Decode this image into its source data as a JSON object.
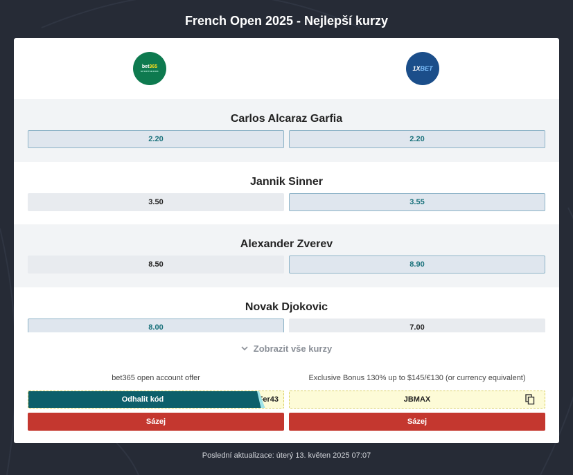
{
  "page": {
    "title": "French Open 2025 - Nejlepší kurzy"
  },
  "bookmakers": [
    {
      "name": "bet365",
      "logo_text_main": "bet",
      "logo_text_accent": "365",
      "logo_sub": "SPORTSBOOK",
      "color": "#0e7a4f"
    },
    {
      "name": "1xBet",
      "logo_text_main": "1X",
      "logo_text_accent": "BET",
      "color": "#1b4e8a"
    }
  ],
  "players": [
    {
      "name": "Carlos Alcaraz Garfia",
      "odds": [
        "2.20",
        "2.20"
      ],
      "best": [
        true,
        true
      ]
    },
    {
      "name": "Jannik Sinner",
      "odds": [
        "3.50",
        "3.55"
      ],
      "best": [
        false,
        true
      ]
    },
    {
      "name": "Alexander Zverev",
      "odds": [
        "8.50",
        "8.90"
      ],
      "best": [
        false,
        true
      ]
    },
    {
      "name": "Novak Djokovic",
      "odds": [
        "8.00",
        "7.00"
      ],
      "best": [
        true,
        false
      ]
    }
  ],
  "show_all_label": "Zobrazit vše kurzy",
  "offers": [
    {
      "text": "bet365 open account offer",
      "reveal_label": "Odhalit kód",
      "code_peek": "Fer43",
      "bet_label": "Sázej"
    },
    {
      "text": "Exclusive Bonus 130% up to $145/€130 (or currency equivalent)",
      "code": "JBMAX",
      "bet_label": "Sázej"
    }
  ],
  "footer": {
    "last_update": "Poslední aktualizace: úterý 13. květen 2025 07:07"
  },
  "colors": {
    "accent": "#0d5f6b",
    "bet_button": "#c4372f",
    "best_odds_text": "#18707a",
    "background": "#262b36"
  }
}
